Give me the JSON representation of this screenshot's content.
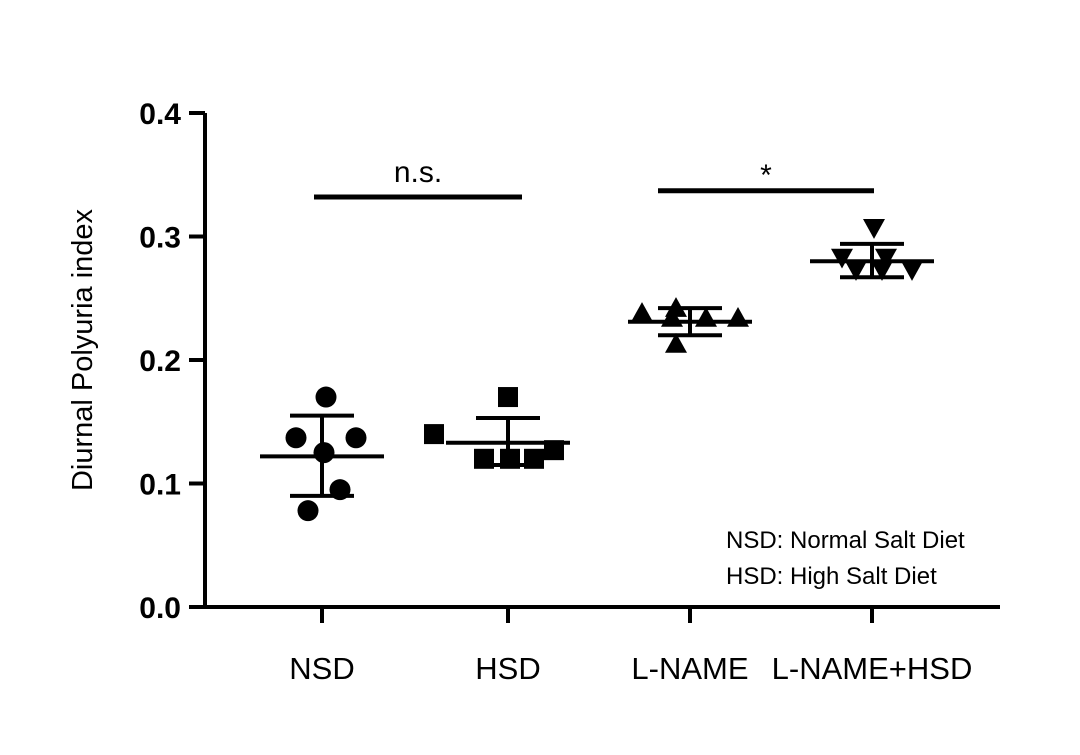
{
  "chart_data": {
    "type": "scatter",
    "ylabel": "Diurnal Polyuria index",
    "ylim": [
      0,
      0.4
    ],
    "yticks": [
      "0.0",
      "0.1",
      "0.2",
      "0.3",
      "0.4"
    ],
    "categories": [
      "NSD",
      "HSD",
      "L-NAME",
      "L-NAME+HSD"
    ],
    "groups": [
      {
        "category": "NSD",
        "marker": "circle",
        "mean": 0.122,
        "sd_low": 0.09,
        "sd_high": 0.155,
        "points": [
          0.17,
          0.137,
          0.137,
          0.125,
          0.095,
          0.078
        ]
      },
      {
        "category": "HSD",
        "marker": "square",
        "mean": 0.133,
        "sd_low": 0.115,
        "sd_high": 0.153,
        "points": [
          0.17,
          0.14,
          0.127,
          0.12,
          0.12,
          0.12
        ]
      },
      {
        "category": "L-NAME",
        "marker": "triangle-up",
        "mean": 0.231,
        "sd_low": 0.22,
        "sd_high": 0.242,
        "points": [
          0.242,
          0.238,
          0.234,
          0.234,
          0.234,
          0.213
        ]
      },
      {
        "category": "L-NAME+HSD",
        "marker": "triangle-down",
        "mean": 0.28,
        "sd_low": 0.267,
        "sd_high": 0.294,
        "points": [
          0.307,
          0.283,
          0.283,
          0.273,
          0.273,
          0.273
        ]
      }
    ],
    "significance": [
      {
        "from": "NSD",
        "to": "HSD",
        "label": "n.s.",
        "y": 0.332
      },
      {
        "from": "L-NAME",
        "to": "L-NAME+HSD",
        "label": "*",
        "y": 0.337
      }
    ],
    "legend": [
      "NSD: Normal Salt Diet",
      "HSD: High Salt Diet"
    ],
    "legend_position": "bottom-right",
    "grid": false
  }
}
